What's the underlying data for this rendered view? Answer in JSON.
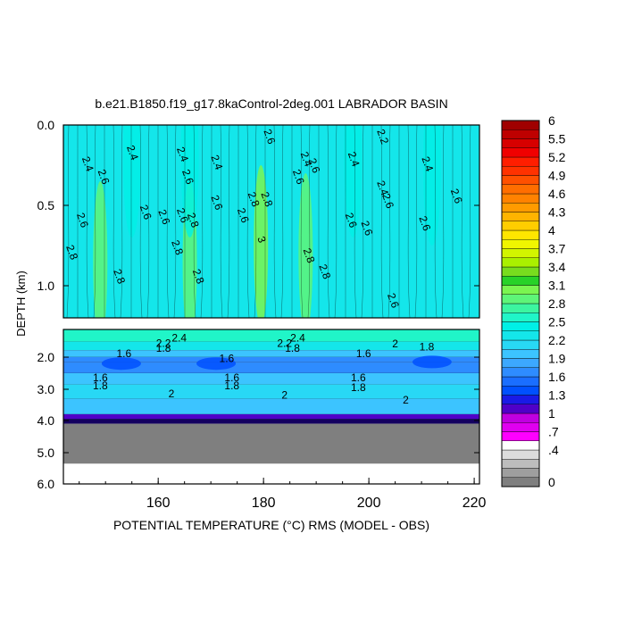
{
  "chart_data": {
    "type": "heatmap",
    "title": "b.e21.B1850.f19_g17.8kaControl-2deg.001 LABRADOR BASIN",
    "xlabel": "POTENTIAL TEMPERATURE (°C) RMS (MODEL - OBS)",
    "ylabel": "DEPTH (km)",
    "xlim": [
      142,
      221
    ],
    "x_ticks": [
      "160",
      "180",
      "200",
      "220"
    ],
    "upper_panel": {
      "ylim": [
        0.0,
        1.2
      ],
      "y_ticks": [
        "0.0",
        "0.5",
        "1.0"
      ],
      "base_value": 2.5,
      "field_features": [
        {
          "x": 179.5,
          "depth": 0.75,
          "value": 3.0
        },
        {
          "x": 166.0,
          "depth": 0.85,
          "value": 2.8
        },
        {
          "x": 149.0,
          "depth": 0.85,
          "value": 2.8
        },
        {
          "x": 188.0,
          "depth": 0.8,
          "value": 2.8
        },
        {
          "x": 206.5,
          "depth": 0.1,
          "value": 2.2
        },
        {
          "x": 155.0,
          "depth": 0.2,
          "value": 2.4
        },
        {
          "x": 166.0,
          "depth": 0.2,
          "value": 2.4
        },
        {
          "x": 197.0,
          "depth": 0.2,
          "value": 2.4
        },
        {
          "x": 212.0,
          "depth": 0.25,
          "value": 2.4
        }
      ],
      "contour_labels": [
        {
          "x": 180.5,
          "depth": 0.08,
          "text": "2.6"
        },
        {
          "x": 202.0,
          "depth": 0.08,
          "text": "2.2"
        },
        {
          "x": 146.0,
          "depth": 0.25,
          "text": "2.4"
        },
        {
          "x": 154.5,
          "depth": 0.18,
          "text": "2.4"
        },
        {
          "x": 164.0,
          "depth": 0.19,
          "text": "2.4"
        },
        {
          "x": 170.5,
          "depth": 0.24,
          "text": "2.4"
        },
        {
          "x": 187.5,
          "depth": 0.22,
          "text": "2.4"
        },
        {
          "x": 189.0,
          "depth": 0.26,
          "text": "2.6"
        },
        {
          "x": 196.5,
          "depth": 0.22,
          "text": "2.4"
        },
        {
          "x": 210.5,
          "depth": 0.25,
          "text": "2.4"
        },
        {
          "x": 149.0,
          "depth": 0.33,
          "text": "2.6"
        },
        {
          "x": 165.0,
          "depth": 0.33,
          "text": "2.6"
        },
        {
          "x": 186.0,
          "depth": 0.33,
          "text": "2.6"
        },
        {
          "x": 202.0,
          "depth": 0.4,
          "text": "2.4"
        },
        {
          "x": 203.0,
          "depth": 0.48,
          "text": "2.6"
        },
        {
          "x": 216.0,
          "depth": 0.45,
          "text": "2.6"
        },
        {
          "x": 170.5,
          "depth": 0.49,
          "text": "2.6"
        },
        {
          "x": 177.5,
          "depth": 0.47,
          "text": "2.8"
        },
        {
          "x": 180.0,
          "depth": 0.47,
          "text": "2.8"
        },
        {
          "x": 157.0,
          "depth": 0.55,
          "text": "2.6"
        },
        {
          "x": 160.5,
          "depth": 0.58,
          "text": "2.6"
        },
        {
          "x": 164.0,
          "depth": 0.57,
          "text": "2.6"
        },
        {
          "x": 166.0,
          "depth": 0.6,
          "text": "2.8"
        },
        {
          "x": 175.5,
          "depth": 0.57,
          "text": "2.6"
        },
        {
          "x": 145.0,
          "depth": 0.6,
          "text": "2.6"
        },
        {
          "x": 196.0,
          "depth": 0.6,
          "text": "2.6"
        },
        {
          "x": 199.0,
          "depth": 0.65,
          "text": "2.6"
        },
        {
          "x": 210.0,
          "depth": 0.62,
          "text": "2.6"
        },
        {
          "x": 179.0,
          "depth": 0.72,
          "text": "3"
        },
        {
          "x": 163.0,
          "depth": 0.77,
          "text": "2.8"
        },
        {
          "x": 143.0,
          "depth": 0.8,
          "text": "2.8"
        },
        {
          "x": 188.0,
          "depth": 0.82,
          "text": "2.8"
        },
        {
          "x": 191.0,
          "depth": 0.92,
          "text": "2.8"
        },
        {
          "x": 152.0,
          "depth": 0.95,
          "text": "2.8"
        },
        {
          "x": 167.0,
          "depth": 0.95,
          "text": "2.8"
        },
        {
          "x": 204.0,
          "depth": 1.1,
          "text": "2.6"
        }
      ]
    },
    "lower_panel": {
      "y_ticks": [
        "2.0",
        "3.0",
        "4.0",
        "5.0",
        "6.0"
      ],
      "y_tick_depths_km": [
        2.0,
        3.0,
        4.0,
        5.0,
        6.0
      ],
      "no_data_below_km": 4.1,
      "layers": [
        {
          "depth": 1.55,
          "value": 2.5
        },
        {
          "depth": 1.8,
          "value": 2.2
        },
        {
          "depth": 2.0,
          "value": 1.9
        },
        {
          "depth": 2.15,
          "value": 1.6
        },
        {
          "depth": 2.5,
          "value": 1.6
        },
        {
          "depth": 2.85,
          "value": 1.9
        },
        {
          "depth": 3.3,
          "value": 2.1
        },
        {
          "depth": 3.8,
          "value": 2.0
        },
        {
          "depth": 3.95,
          "value": 1.1
        }
      ],
      "contour_labels": [
        {
          "x": 164.0,
          "depth": 1.55,
          "text": "2.4"
        },
        {
          "x": 186.5,
          "depth": 1.55,
          "text": "2.4"
        },
        {
          "x": 161.0,
          "depth": 1.7,
          "text": "2.2"
        },
        {
          "x": 184.0,
          "depth": 1.7,
          "text": "2.2"
        },
        {
          "x": 205.0,
          "depth": 1.72,
          "text": "2"
        },
        {
          "x": 161.0,
          "depth": 1.85,
          "text": "1.8"
        },
        {
          "x": 185.5,
          "depth": 1.85,
          "text": "1.8"
        },
        {
          "x": 211.0,
          "depth": 1.8,
          "text": "1.8"
        },
        {
          "x": 153.5,
          "depth": 2.0,
          "text": "1.6"
        },
        {
          "x": 173.0,
          "depth": 2.15,
          "text": "1.6"
        },
        {
          "x": 199.0,
          "depth": 2.0,
          "text": "1.6"
        },
        {
          "x": 149.0,
          "depth": 2.75,
          "text": "1.6"
        },
        {
          "x": 174.0,
          "depth": 2.75,
          "text": "1.6"
        },
        {
          "x": 198.0,
          "depth": 2.75,
          "text": "1.6"
        },
        {
          "x": 149.0,
          "depth": 3.0,
          "text": "1.8"
        },
        {
          "x": 174.0,
          "depth": 3.0,
          "text": "1.8"
        },
        {
          "x": 198.0,
          "depth": 3.05,
          "text": "1.8"
        },
        {
          "x": 162.5,
          "depth": 3.25,
          "text": "2"
        },
        {
          "x": 184.0,
          "depth": 3.3,
          "text": "2"
        },
        {
          "x": 207.0,
          "depth": 3.45,
          "text": "2"
        }
      ]
    },
    "colorbar": {
      "levels": [
        0,
        0.1,
        0.2,
        0.3,
        0.4,
        0.55,
        0.7,
        0.85,
        1.0,
        1.15,
        1.3,
        1.45,
        1.6,
        1.75,
        1.9,
        2.05,
        2.2,
        2.35,
        2.5,
        2.65,
        2.8,
        2.95,
        3.1,
        3.25,
        3.4,
        3.55,
        3.7,
        3.85,
        4.0,
        4.15,
        4.3,
        4.45,
        4.6,
        4.75,
        4.9,
        5.05,
        5.2,
        5.35,
        5.5,
        5.75,
        6.0
      ],
      "tick_labels": [
        "0",
        ".4",
        ".7",
        "1",
        "1.3",
        "1.6",
        "1.9",
        "2.2",
        "2.5",
        "2.8",
        "3.1",
        "3.4",
        "3.7",
        "4",
        "4.3",
        "4.6",
        "4.9",
        "5.2",
        "5.5",
        "6"
      ],
      "tick_values": [
        0,
        0.4,
        0.7,
        1.0,
        1.3,
        1.6,
        1.9,
        2.2,
        2.5,
        2.8,
        3.1,
        3.4,
        3.7,
        4.0,
        4.3,
        4.6,
        4.9,
        5.2,
        5.5,
        6.0
      ],
      "colors": [
        "#7f7f7f",
        "#9e9e9e",
        "#bdbdbd",
        "#dcdcdc",
        "#ffffff",
        "#ff00ff",
        "#e000f0",
        "#c000e0",
        "#5000c8",
        "#1a1ae6",
        "#0050ff",
        "#1a6eff",
        "#2e8cff",
        "#3ca8ff",
        "#3cc4ff",
        "#28d8f5",
        "#14e6ea",
        "#00f0e6",
        "#20f5c8",
        "#3cf5a0",
        "#5ef578",
        "#7af550",
        "#28d228",
        "#78dc1e",
        "#aaf000",
        "#d2f500",
        "#f0f500",
        "#ffe600",
        "#ffcd00",
        "#ffb400",
        "#ff9b00",
        "#ff8200",
        "#ff6e00",
        "#ff5000",
        "#ff3200",
        "#ff1e00",
        "#f00000",
        "#d70000",
        "#be0000",
        "#a00000"
      ]
    }
  }
}
